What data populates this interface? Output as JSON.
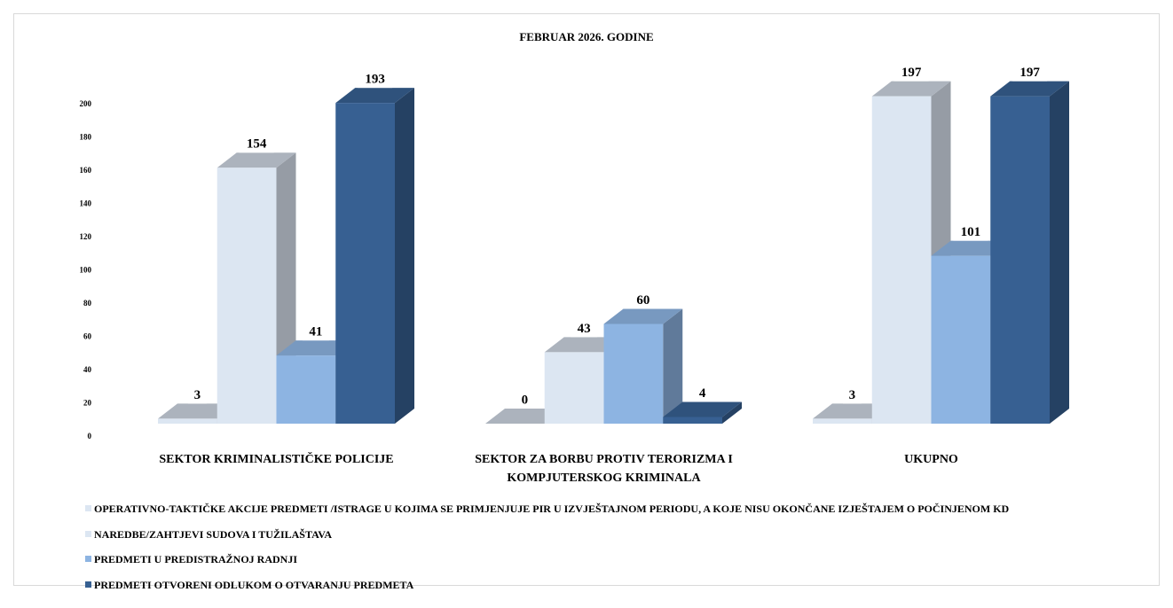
{
  "chart_data": {
    "type": "bar3d",
    "title": "FEBRUAR 2026. GODINE",
    "categories": [
      "SEKTOR KRIMINALISTIČKE POLICIJE",
      "SEKTOR ZA BORBU PROTIV TERORIZMA I KOMPJUTERSKOG KRIMINALA",
      "UKUPNO"
    ],
    "series": [
      {
        "name": "OPERATIVNO-TAKTIČKE AKCIJE PREDMETI /ISTRAGE U KOJIMA SE PRIMJENJUJE PIR U IZVJEŠTAJNOM PERIODU, A KOJE NISU OKONČANE IZJEŠTAJEM O POČINJENOM KD",
        "color": "#dce6f2",
        "values": [
          3,
          0,
          3
        ]
      },
      {
        "name": "NAREDBE/ZAHTJEVI SUDOVA I TUŽILAŠTAVA",
        "color": "#dce6f2",
        "values": [
          154,
          43,
          197
        ]
      },
      {
        "name": "PREDMETI U PREDISTRAŽNOJ RADNJI",
        "color": "#8db4e2",
        "values": [
          41,
          60,
          101
        ]
      },
      {
        "name": "PREDMETI OTVORENI ODLUKOM O OTVARANJU PREDMETA",
        "color": "#376092",
        "values": [
          193,
          4,
          197
        ]
      }
    ],
    "ylim": [
      0,
      200
    ],
    "yticks": [
      0,
      20,
      40,
      60,
      80,
      100,
      120,
      140,
      160,
      180,
      200
    ],
    "legend": "bottom"
  }
}
